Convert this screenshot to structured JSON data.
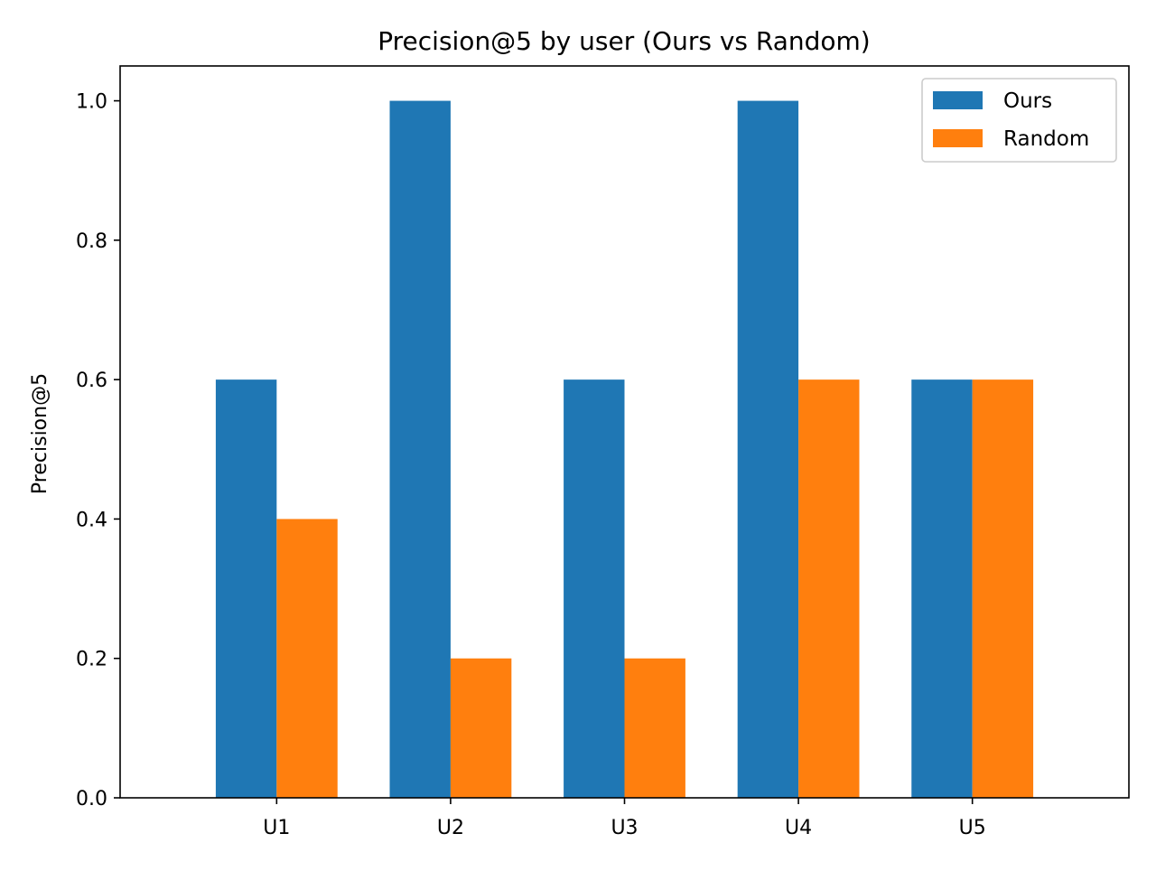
{
  "chart_data": {
    "type": "bar",
    "title": "Precision@5 by user (Ours vs Random)",
    "xlabel": "",
    "ylabel": "Precision@5",
    "categories": [
      "U1",
      "U2",
      "U3",
      "U4",
      "U5"
    ],
    "series": [
      {
        "name": "Ours",
        "color": "#1f77b4",
        "values": [
          0.6,
          1.0,
          0.6,
          1.0,
          0.6
        ]
      },
      {
        "name": "Random",
        "color": "#ff7f0e",
        "values": [
          0.4,
          0.2,
          0.2,
          0.6,
          0.6
        ]
      }
    ],
    "ylim": [
      0,
      1.05
    ],
    "yticks": [
      0.0,
      0.2,
      0.4,
      0.6,
      0.8,
      1.0
    ],
    "ytick_labels": [
      "0.0",
      "0.2",
      "0.4",
      "0.6",
      "0.8",
      "1.0"
    ],
    "grid": false,
    "legend_position": "top-right"
  }
}
